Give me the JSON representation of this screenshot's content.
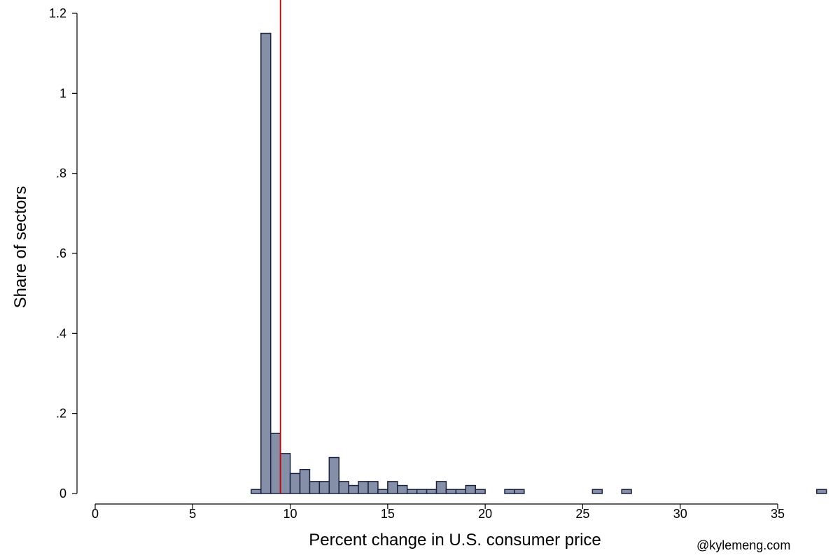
{
  "chart_data": {
    "type": "bar",
    "xlabel": "Percent change in U.S. consumer price",
    "ylabel": "Share of sectors",
    "xlim": [
      0,
      37.5
    ],
    "ylim": [
      0,
      1.2
    ],
    "bin_width": 0.5,
    "x_ticks": [
      {
        "value": 0,
        "label": "0"
      },
      {
        "value": 5,
        "label": "5"
      },
      {
        "value": 10,
        "label": "10"
      },
      {
        "value": 15,
        "label": "15"
      },
      {
        "value": 20,
        "label": "20"
      },
      {
        "value": 25,
        "label": "25"
      },
      {
        "value": 30,
        "label": "30"
      },
      {
        "value": 35,
        "label": "35"
      }
    ],
    "y_ticks": [
      {
        "value": 0,
        "label": "0"
      },
      {
        "value": 0.2,
        "label": ".2"
      },
      {
        "value": 0.4,
        "label": ".4"
      },
      {
        "value": 0.6,
        "label": ".6"
      },
      {
        "value": 0.8,
        "label": ".8"
      },
      {
        "value": 1,
        "label": "1"
      },
      {
        "value": 1.2,
        "label": "1.2"
      }
    ],
    "bins": [
      {
        "x": 8.25,
        "value": 0.01
      },
      {
        "x": 8.75,
        "value": 1.15
      },
      {
        "x": 9.25,
        "value": 0.15
      },
      {
        "x": 9.75,
        "value": 0.1
      },
      {
        "x": 10.25,
        "value": 0.05
      },
      {
        "x": 10.75,
        "value": 0.06
      },
      {
        "x": 11.25,
        "value": 0.03
      },
      {
        "x": 11.75,
        "value": 0.03
      },
      {
        "x": 12.25,
        "value": 0.09
      },
      {
        "x": 12.75,
        "value": 0.03
      },
      {
        "x": 13.25,
        "value": 0.02
      },
      {
        "x": 13.75,
        "value": 0.03
      },
      {
        "x": 14.25,
        "value": 0.03
      },
      {
        "x": 14.75,
        "value": 0.01
      },
      {
        "x": 15.25,
        "value": 0.03
      },
      {
        "x": 15.75,
        "value": 0.02
      },
      {
        "x": 16.25,
        "value": 0.01
      },
      {
        "x": 16.75,
        "value": 0.01
      },
      {
        "x": 17.25,
        "value": 0.01
      },
      {
        "x": 17.75,
        "value": 0.03
      },
      {
        "x": 18.25,
        "value": 0.01
      },
      {
        "x": 18.75,
        "value": 0.01
      },
      {
        "x": 19.25,
        "value": 0.02
      },
      {
        "x": 19.75,
        "value": 0.01
      },
      {
        "x": 21.25,
        "value": 0.01
      },
      {
        "x": 21.75,
        "value": 0.01
      },
      {
        "x": 25.75,
        "value": 0.01
      },
      {
        "x": 27.25,
        "value": 0.01
      },
      {
        "x": 37.25,
        "value": 0.01
      }
    ],
    "reference_line": {
      "x": 9.5,
      "color": "#cc0000"
    },
    "bar_fill": "#8590a8",
    "bar_stroke": "#1c2340",
    "grid": false
  },
  "credit": "@kylemeng.com"
}
